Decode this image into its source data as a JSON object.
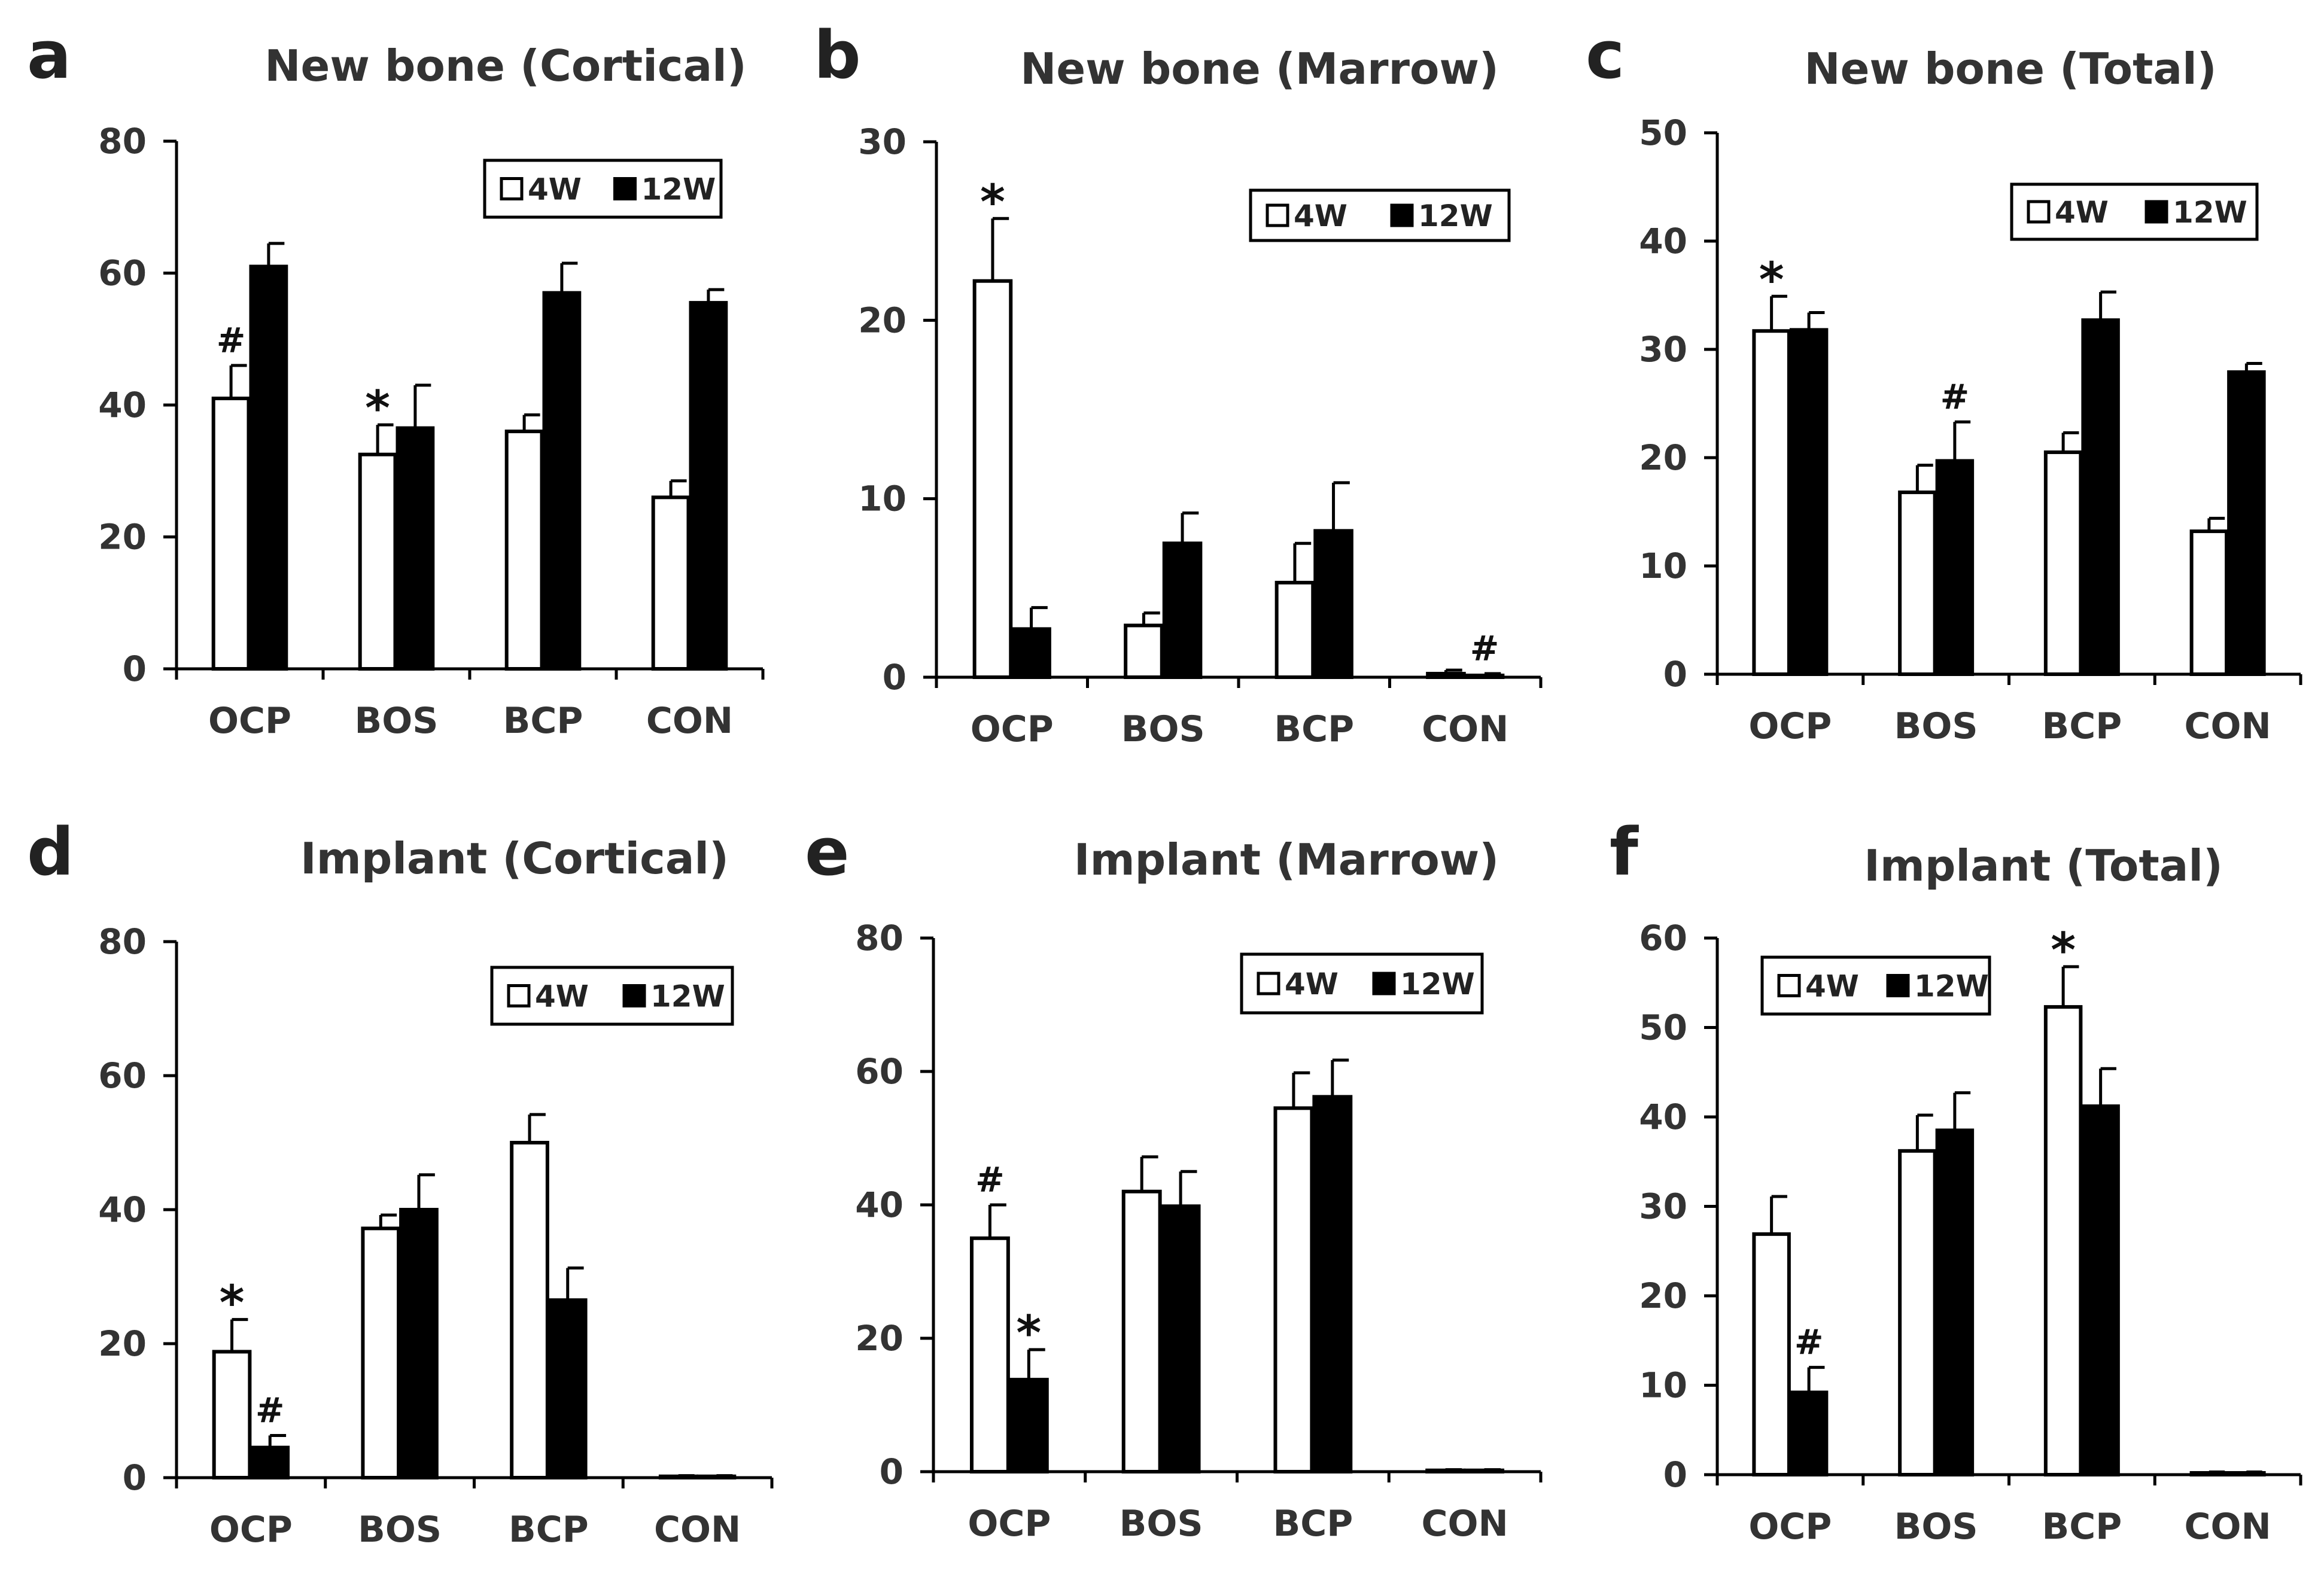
{
  "colors": {
    "bar_4w_fill": "#ffffff",
    "bar_12w_fill": "#000000",
    "stroke": "#000000",
    "text": "#333333"
  },
  "legend": {
    "items": [
      "4W",
      "12W"
    ]
  },
  "chart_data": [
    {
      "id": "a",
      "panel_label": "a",
      "type": "bar",
      "title": "New bone (Cortical)",
      "categories": [
        "OCP",
        "BOS",
        "BCP",
        "CON"
      ],
      "ylim": [
        0,
        80
      ],
      "yticks": [
        0,
        20,
        40,
        60,
        80
      ],
      "ytick_labels": [
        "0",
        "20",
        "40",
        "60",
        "80"
      ],
      "legend_position": "top-right",
      "series": [
        {
          "name": "4W",
          "values": [
            41,
            32.5,
            36,
            26
          ],
          "errors": [
            5,
            4.5,
            2.5,
            2.5
          ]
        },
        {
          "name": "12W",
          "values": [
            61,
            36.5,
            57,
            55.5
          ],
          "errors": [
            3.5,
            6.5,
            4.5,
            2
          ]
        }
      ],
      "annotations": [
        {
          "text": "#",
          "series": 0,
          "category": 0
        },
        {
          "text": "*",
          "series": 0,
          "category": 1
        }
      ]
    },
    {
      "id": "b",
      "panel_label": "b",
      "type": "bar",
      "title": "New bone (Marrow)",
      "categories": [
        "OCP",
        "BOS",
        "BCP",
        "CON"
      ],
      "ylim": [
        0,
        30
      ],
      "yticks": [
        0,
        10,
        20,
        30
      ],
      "ytick_labels": [
        "0",
        "10",
        "20",
        "30"
      ],
      "legend_position": "top-right",
      "series": [
        {
          "name": "4W",
          "values": [
            22.2,
            2.9,
            5.3,
            0.2
          ],
          "errors": [
            3.5,
            0.7,
            2.2,
            0.2
          ]
        },
        {
          "name": "12W",
          "values": [
            2.7,
            7.5,
            8.2,
            0.1
          ],
          "errors": [
            1.2,
            1.7,
            2.7,
            0.1
          ]
        }
      ],
      "annotations": [
        {
          "text": "*",
          "series": 0,
          "category": 0
        },
        {
          "text": "#",
          "series": 1,
          "category": 3
        }
      ]
    },
    {
      "id": "c",
      "panel_label": "c",
      "type": "bar",
      "title": "New bone (Total)",
      "categories": [
        "OCP",
        "BOS",
        "BCP",
        "CON"
      ],
      "ylim": [
        0,
        50
      ],
      "yticks": [
        0,
        10,
        20,
        30,
        40,
        50
      ],
      "ytick_labels": [
        "0",
        "10",
        "20",
        "30",
        "40",
        "50"
      ],
      "legend_position": "top-right",
      "series": [
        {
          "name": "4W",
          "values": [
            31.7,
            16.8,
            20.5,
            13.2
          ],
          "errors": [
            3.2,
            2.5,
            1.8,
            1.2
          ]
        },
        {
          "name": "12W",
          "values": [
            31.8,
            19.7,
            32.7,
            27.9
          ],
          "errors": [
            1.6,
            3.6,
            2.6,
            0.8
          ]
        }
      ],
      "annotations": [
        {
          "text": "*",
          "series": 0,
          "category": 0
        },
        {
          "text": "#",
          "series": 1,
          "category": 1
        }
      ]
    },
    {
      "id": "d",
      "panel_label": "d",
      "type": "bar",
      "title": "Implant (Cortical)",
      "categories": [
        "OCP",
        "BOS",
        "BCP",
        "CON"
      ],
      "ylim": [
        0,
        80
      ],
      "yticks": [
        0,
        20,
        40,
        60,
        80
      ],
      "ytick_labels": [
        "0",
        "20",
        "40",
        "60",
        "80"
      ],
      "legend_position": "top-right",
      "series": [
        {
          "name": "4W",
          "values": [
            18.8,
            37.2,
            50,
            0.2
          ],
          "errors": [
            4.8,
            2,
            4.2,
            0.1
          ]
        },
        {
          "name": "12W",
          "values": [
            4.5,
            40,
            26.5,
            0.2
          ],
          "errors": [
            1.8,
            5.2,
            4.8,
            0.1
          ]
        }
      ],
      "annotations": [
        {
          "text": "*",
          "series": 0,
          "category": 0
        },
        {
          "text": "#",
          "series": 1,
          "category": 0
        }
      ]
    },
    {
      "id": "e",
      "panel_label": "e",
      "type": "bar",
      "title": "Implant (Marrow)",
      "categories": [
        "OCP",
        "BOS",
        "BCP",
        "CON"
      ],
      "ylim": [
        0,
        80
      ],
      "yticks": [
        0,
        20,
        40,
        60,
        80
      ],
      "ytick_labels": [
        "0",
        "20",
        "40",
        "60",
        "80"
      ],
      "legend_position": "top-right",
      "series": [
        {
          "name": "4W",
          "values": [
            35,
            42,
            54.5,
            0.2
          ],
          "errors": [
            5,
            5.2,
            5.3,
            0.1
          ]
        },
        {
          "name": "12W",
          "values": [
            13.8,
            39.8,
            56.2,
            0.2
          ],
          "errors": [
            4.5,
            5.2,
            5.5,
            0.1
          ]
        }
      ],
      "annotations": [
        {
          "text": "#",
          "series": 0,
          "category": 0
        },
        {
          "text": "*",
          "series": 1,
          "category": 0
        }
      ]
    },
    {
      "id": "f",
      "panel_label": "f",
      "type": "bar",
      "title": "Implant (Total)",
      "categories": [
        "OCP",
        "BOS",
        "BCP",
        "CON"
      ],
      "ylim": [
        0,
        60
      ],
      "yticks": [
        0,
        10,
        20,
        30,
        40,
        50,
        60
      ],
      "ytick_labels": [
        "0",
        "10",
        "20",
        "30",
        "40",
        "50",
        "60"
      ],
      "legend_position": "top-left",
      "series": [
        {
          "name": "4W",
          "values": [
            26.9,
            36.2,
            52.3,
            0.2
          ],
          "errors": [
            4.2,
            4,
            4.5,
            0.1
          ]
        },
        {
          "name": "12W",
          "values": [
            9.2,
            38.5,
            41.2,
            0.2
          ],
          "errors": [
            2.8,
            4.2,
            4.2,
            0.1
          ]
        }
      ],
      "annotations": [
        {
          "text": "*",
          "series": 0,
          "category": 2
        },
        {
          "text": "#",
          "series": 1,
          "category": 0
        }
      ]
    }
  ]
}
